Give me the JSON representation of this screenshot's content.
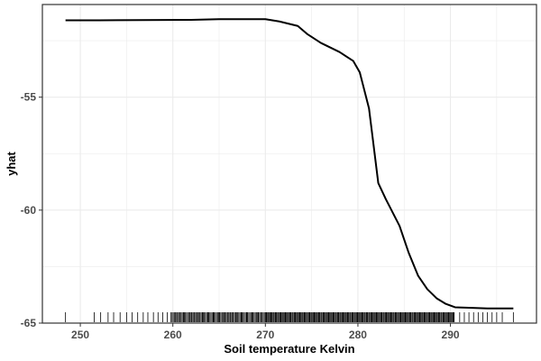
{
  "chart_data": {
    "type": "line",
    "title": "",
    "xlabel": "Soil temperature Kelvin",
    "ylabel": "yhat",
    "xlim": [
      245.9,
      299.3
    ],
    "ylim": [
      -65.0,
      -50.9
    ],
    "x_ticks": [
      {
        "value": 250,
        "label": "250"
      },
      {
        "value": 260,
        "label": "260"
      },
      {
        "value": 270,
        "label": "270"
      },
      {
        "value": 280,
        "label": "280"
      },
      {
        "value": 290,
        "label": "290"
      }
    ],
    "y_ticks": [
      {
        "value": -55,
        "label": "-55"
      },
      {
        "value": -60,
        "label": "-60"
      },
      {
        "value": -65,
        "label": "-65"
      }
    ],
    "grid": true,
    "legend": "none",
    "line_color": "#000000",
    "series": [
      {
        "x": [
          248.4,
          252.0,
          262.0,
          265.0,
          270.0,
          271.5,
          273.5,
          274.5,
          276.0,
          278.0,
          279.5,
          280.2,
          281.2,
          282.2,
          283.0,
          284.5,
          285.5,
          286.5,
          287.5,
          288.5,
          289.5,
          290.5,
          292.0,
          294.0,
          296.8
        ],
        "y": [
          -51.6,
          -51.6,
          -51.58,
          -51.55,
          -51.55,
          -51.65,
          -51.85,
          -52.2,
          -52.6,
          -53.0,
          -53.4,
          -53.9,
          -55.5,
          -58.8,
          -59.5,
          -60.7,
          -61.9,
          -62.9,
          -63.5,
          -63.9,
          -64.15,
          -64.3,
          -64.32,
          -64.35,
          -64.35
        ]
      }
    ],
    "rug": {
      "ranges": [
        [
          259.8,
          290.5
        ],
        [
          270.0,
          290.5
        ]
      ],
      "points": [
        248.4,
        251.5,
        252.2,
        253.0,
        253.6,
        254.3,
        255.0,
        255.6,
        256.2,
        256.8,
        257.3,
        257.9,
        258.4,
        258.9,
        259.4,
        260.5,
        261.2,
        262.0,
        262.6,
        263.2,
        263.8,
        264.4,
        265.0,
        265.6,
        266.2,
        266.8,
        267.4,
        268.0,
        268.6,
        269.2,
        291.0,
        291.5,
        292.0,
        292.5,
        293.0,
        293.5,
        294.0,
        294.5,
        295.0,
        295.6,
        296.8
      ],
      "color": "#000000"
    },
    "panel_border_color": "#333333",
    "grid_color": "#ebebeb"
  }
}
